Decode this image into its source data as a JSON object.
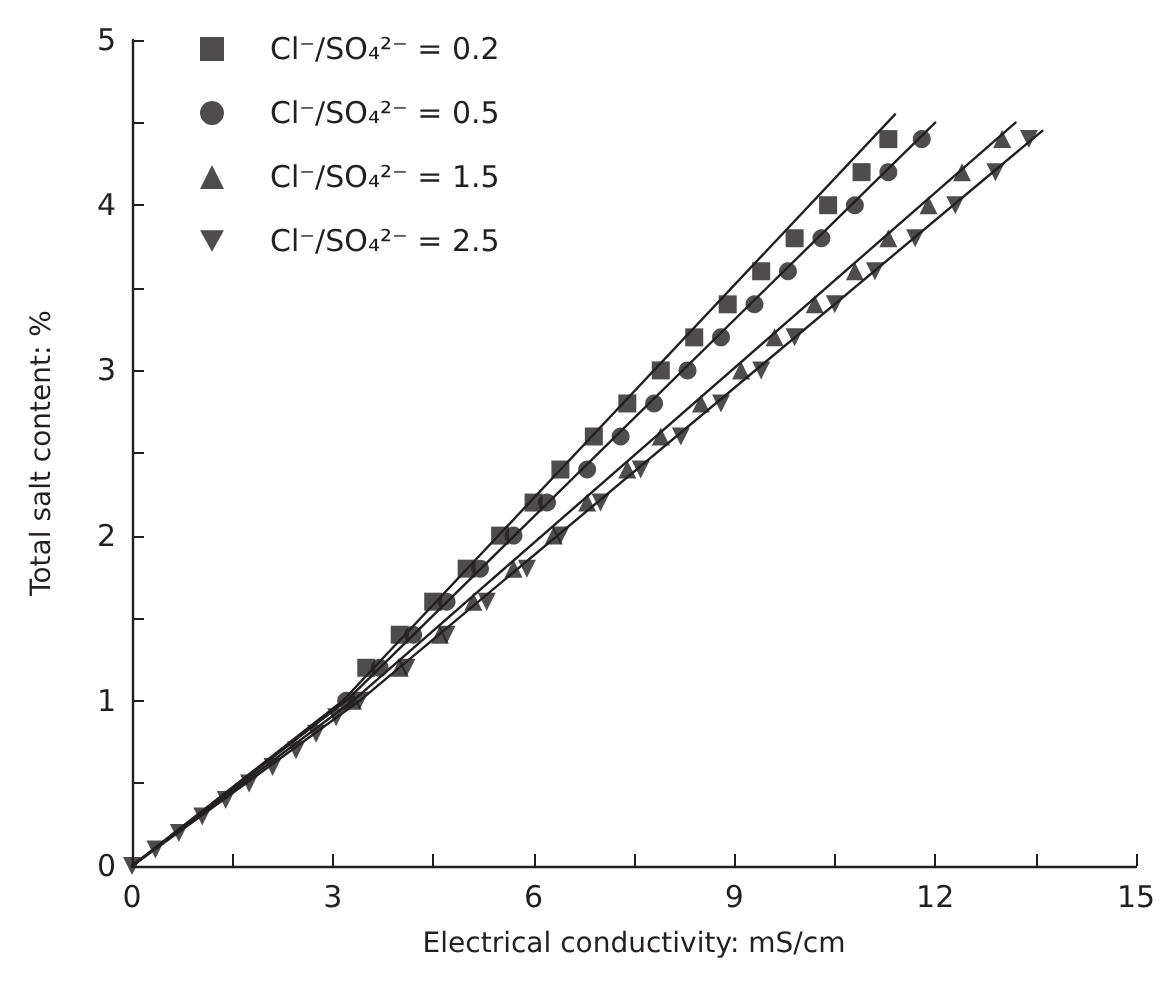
{
  "chart_data": {
    "type": "scatter",
    "xlabel": "Electrical conductivity: mS/cm",
    "ylabel": "Total salt content: %",
    "xlim": [
      0,
      15
    ],
    "xticks": [
      0,
      {
        "value": 1.5,
        "label": null
      },
      3,
      {
        "value": 4.5,
        "label": null
      },
      6,
      {
        "value": 7.5,
        "label": null
      },
      9,
      {
        "value": 10.5,
        "label": null
      },
      12,
      {
        "value": 13.5,
        "label": null
      },
      15
    ],
    "ylim": [
      0,
      5
    ],
    "yticks": [
      0,
      {
        "value": 0.5,
        "label": null
      },
      1,
      {
        "value": 1.5,
        "label": null
      },
      2,
      {
        "value": 2.5,
        "label": null
      },
      3,
      {
        "value": 3.5,
        "label": null
      },
      4,
      {
        "value": 4.5,
        "label": null
      },
      5
    ],
    "grid": false,
    "legend": "top left",
    "series": [
      {
        "name": "Cl⁻/SO₄²⁻ = 0.2",
        "color": "#231f20",
        "marker": "square",
        "x": [
          3.5,
          4.0,
          4.5,
          5.0,
          5.5,
          6.0,
          6.4,
          6.9,
          7.4,
          7.9,
          8.4,
          8.9,
          9.4,
          9.9,
          10.4,
          10.9,
          11.3
        ],
        "values": [
          1.2,
          1.4,
          1.6,
          1.8,
          2.0,
          2.2,
          2.4,
          2.6,
          2.8,
          3.0,
          3.2,
          3.4,
          3.6,
          3.8,
          4.0,
          4.2,
          4.4
        ]
      },
      {
        "name": "Cl⁻/SO₄²⁻ = 0.5",
        "color": "#231f20",
        "marker": "circle",
        "x": [
          3.2,
          3.7,
          4.2,
          4.7,
          5.2,
          5.7,
          6.2,
          6.8,
          7.3,
          7.8,
          8.3,
          8.8,
          9.3,
          9.8,
          10.3,
          10.8,
          11.3,
          11.8
        ],
        "values": [
          1.0,
          1.2,
          1.4,
          1.6,
          1.8,
          2.0,
          2.2,
          2.4,
          2.6,
          2.8,
          3.0,
          3.2,
          3.4,
          3.6,
          3.8,
          4.0,
          4.2,
          4.4
        ]
      },
      {
        "name": "Cl⁻/SO₄²⁻ = 1.5",
        "color": "#231f20",
        "marker": "triangle",
        "x": [
          3.3,
          4.0,
          4.6,
          5.1,
          5.7,
          6.3,
          6.8,
          7.4,
          7.9,
          8.5,
          9.1,
          9.6,
          10.2,
          10.8,
          11.3,
          11.9,
          12.4,
          13.0
        ],
        "values": [
          1.0,
          1.2,
          1.4,
          1.6,
          1.8,
          2.0,
          2.2,
          2.4,
          2.6,
          2.8,
          3.0,
          3.2,
          3.4,
          3.6,
          3.8,
          4.0,
          4.2,
          4.4
        ]
      },
      {
        "name": "Cl⁻/SO₄²⁻ = 2.5",
        "color": "#231f20",
        "marker": "triangle-down",
        "x": [
          0,
          0.35,
          0.7,
          1.05,
          1.4,
          1.75,
          2.1,
          2.45,
          2.75,
          3.05,
          3.4,
          4.1,
          4.7,
          5.3,
          5.9,
          6.4,
          7.0,
          7.6,
          8.2,
          8.8,
          9.4,
          9.9,
          10.5,
          11.1,
          11.7,
          12.3,
          12.9,
          13.4
        ],
        "values": [
          0,
          0.1,
          0.2,
          0.3,
          0.4,
          0.5,
          0.6,
          0.7,
          0.8,
          0.9,
          1.0,
          1.2,
          1.4,
          1.6,
          1.8,
          2.0,
          2.2,
          2.4,
          2.6,
          2.8,
          3.0,
          3.2,
          3.4,
          3.6,
          3.8,
          4.0,
          4.2,
          4.4
        ]
      },
      {
        "type": "line",
        "color": "#231f20",
        "marker": "none",
        "x": [
          0,
          3.15,
          11.4
        ],
        "values": [
          0,
          1.0,
          4.55
        ]
      },
      {
        "type": "line",
        "color": "#231f20",
        "marker": "none",
        "x": [
          0,
          3.2,
          12.0
        ],
        "values": [
          0,
          1.0,
          4.5
        ]
      },
      {
        "type": "line",
        "color": "#231f20",
        "marker": "none",
        "x": [
          0,
          3.3,
          13.2
        ],
        "values": [
          0,
          1.0,
          4.5
        ]
      },
      {
        "type": "line",
        "color": "#231f20",
        "marker": "none",
        "x": [
          0,
          3.4,
          13.6
        ],
        "values": [
          0,
          1.0,
          4.45
        ]
      }
    ]
  }
}
